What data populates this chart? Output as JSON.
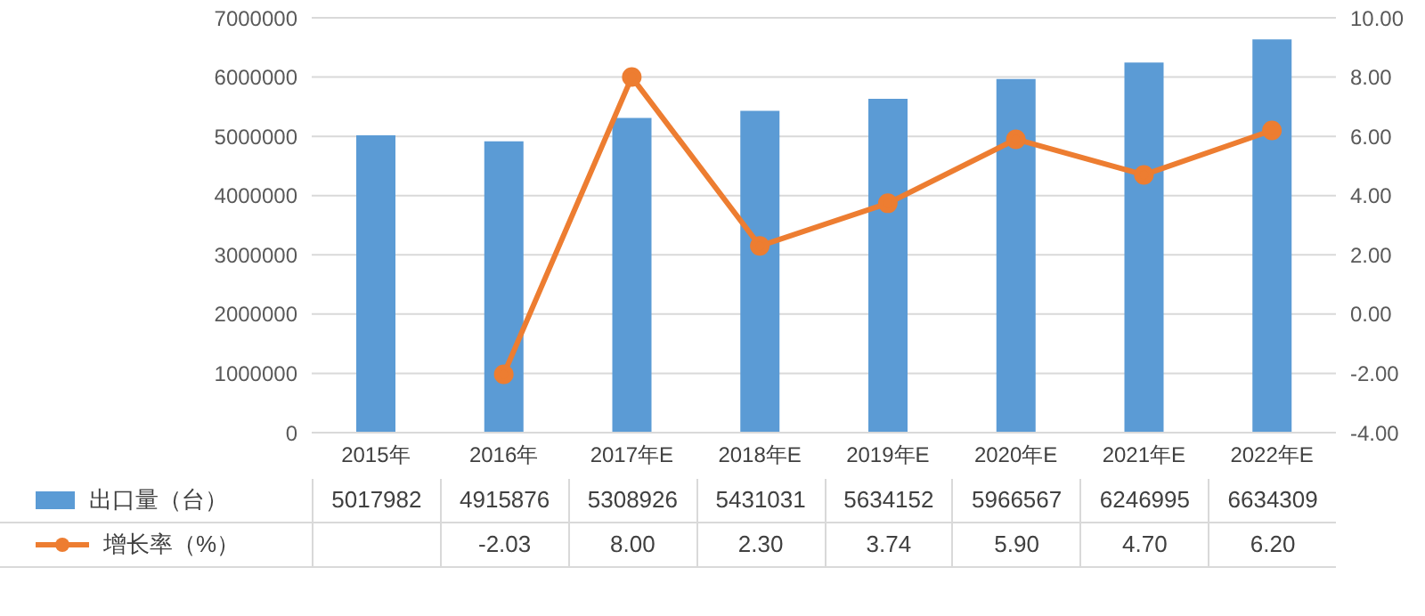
{
  "chart_data": {
    "type": "bar",
    "categories": [
      "2015年",
      "2016年",
      "2017年E",
      "2018年E",
      "2019年E",
      "2020年E",
      "2021年E",
      "2022年E"
    ],
    "series": [
      {
        "name": "出口量（台）",
        "color": "#5b9bd5",
        "values": [
          5017982,
          4915876,
          5308926,
          5431031,
          5634152,
          5966567,
          6246995,
          6634309
        ],
        "value_labels": [
          "5017982",
          "4915876",
          "5308926",
          "5431031",
          "5634152",
          "5966567",
          "6246995",
          "6634309"
        ]
      },
      {
        "name": "增长率（%）",
        "type": "line",
        "axis": "y2",
        "color": "#ed7d31",
        "marker": "circle",
        "line_style": "solid",
        "values": [
          null,
          -2.03,
          8.0,
          2.3,
          3.74,
          5.9,
          4.7,
          6.2
        ],
        "value_labels": [
          null,
          "-2.03",
          "8.00",
          "2.30",
          "3.74",
          "5.90",
          "4.70",
          "6.20"
        ]
      }
    ],
    "ylim": [
      0,
      7000000
    ],
    "yticks": [
      0,
      1000000,
      2000000,
      3000000,
      4000000,
      5000000,
      6000000,
      7000000
    ],
    "y2lim": [
      -4,
      10
    ],
    "y2ticks": [
      {
        "value": -4,
        "label": "-4.00"
      },
      {
        "value": -2,
        "label": "-2.00"
      },
      {
        "value": 0,
        "label": "0.00"
      },
      {
        "value": 2,
        "label": "2.00"
      },
      {
        "value": 4,
        "label": "4.00"
      },
      {
        "value": 6,
        "label": "6.00"
      },
      {
        "value": 8,
        "label": "8.00"
      },
      {
        "value": 10,
        "label": "10.00"
      }
    ],
    "grid": "y",
    "legend": "bottom"
  }
}
